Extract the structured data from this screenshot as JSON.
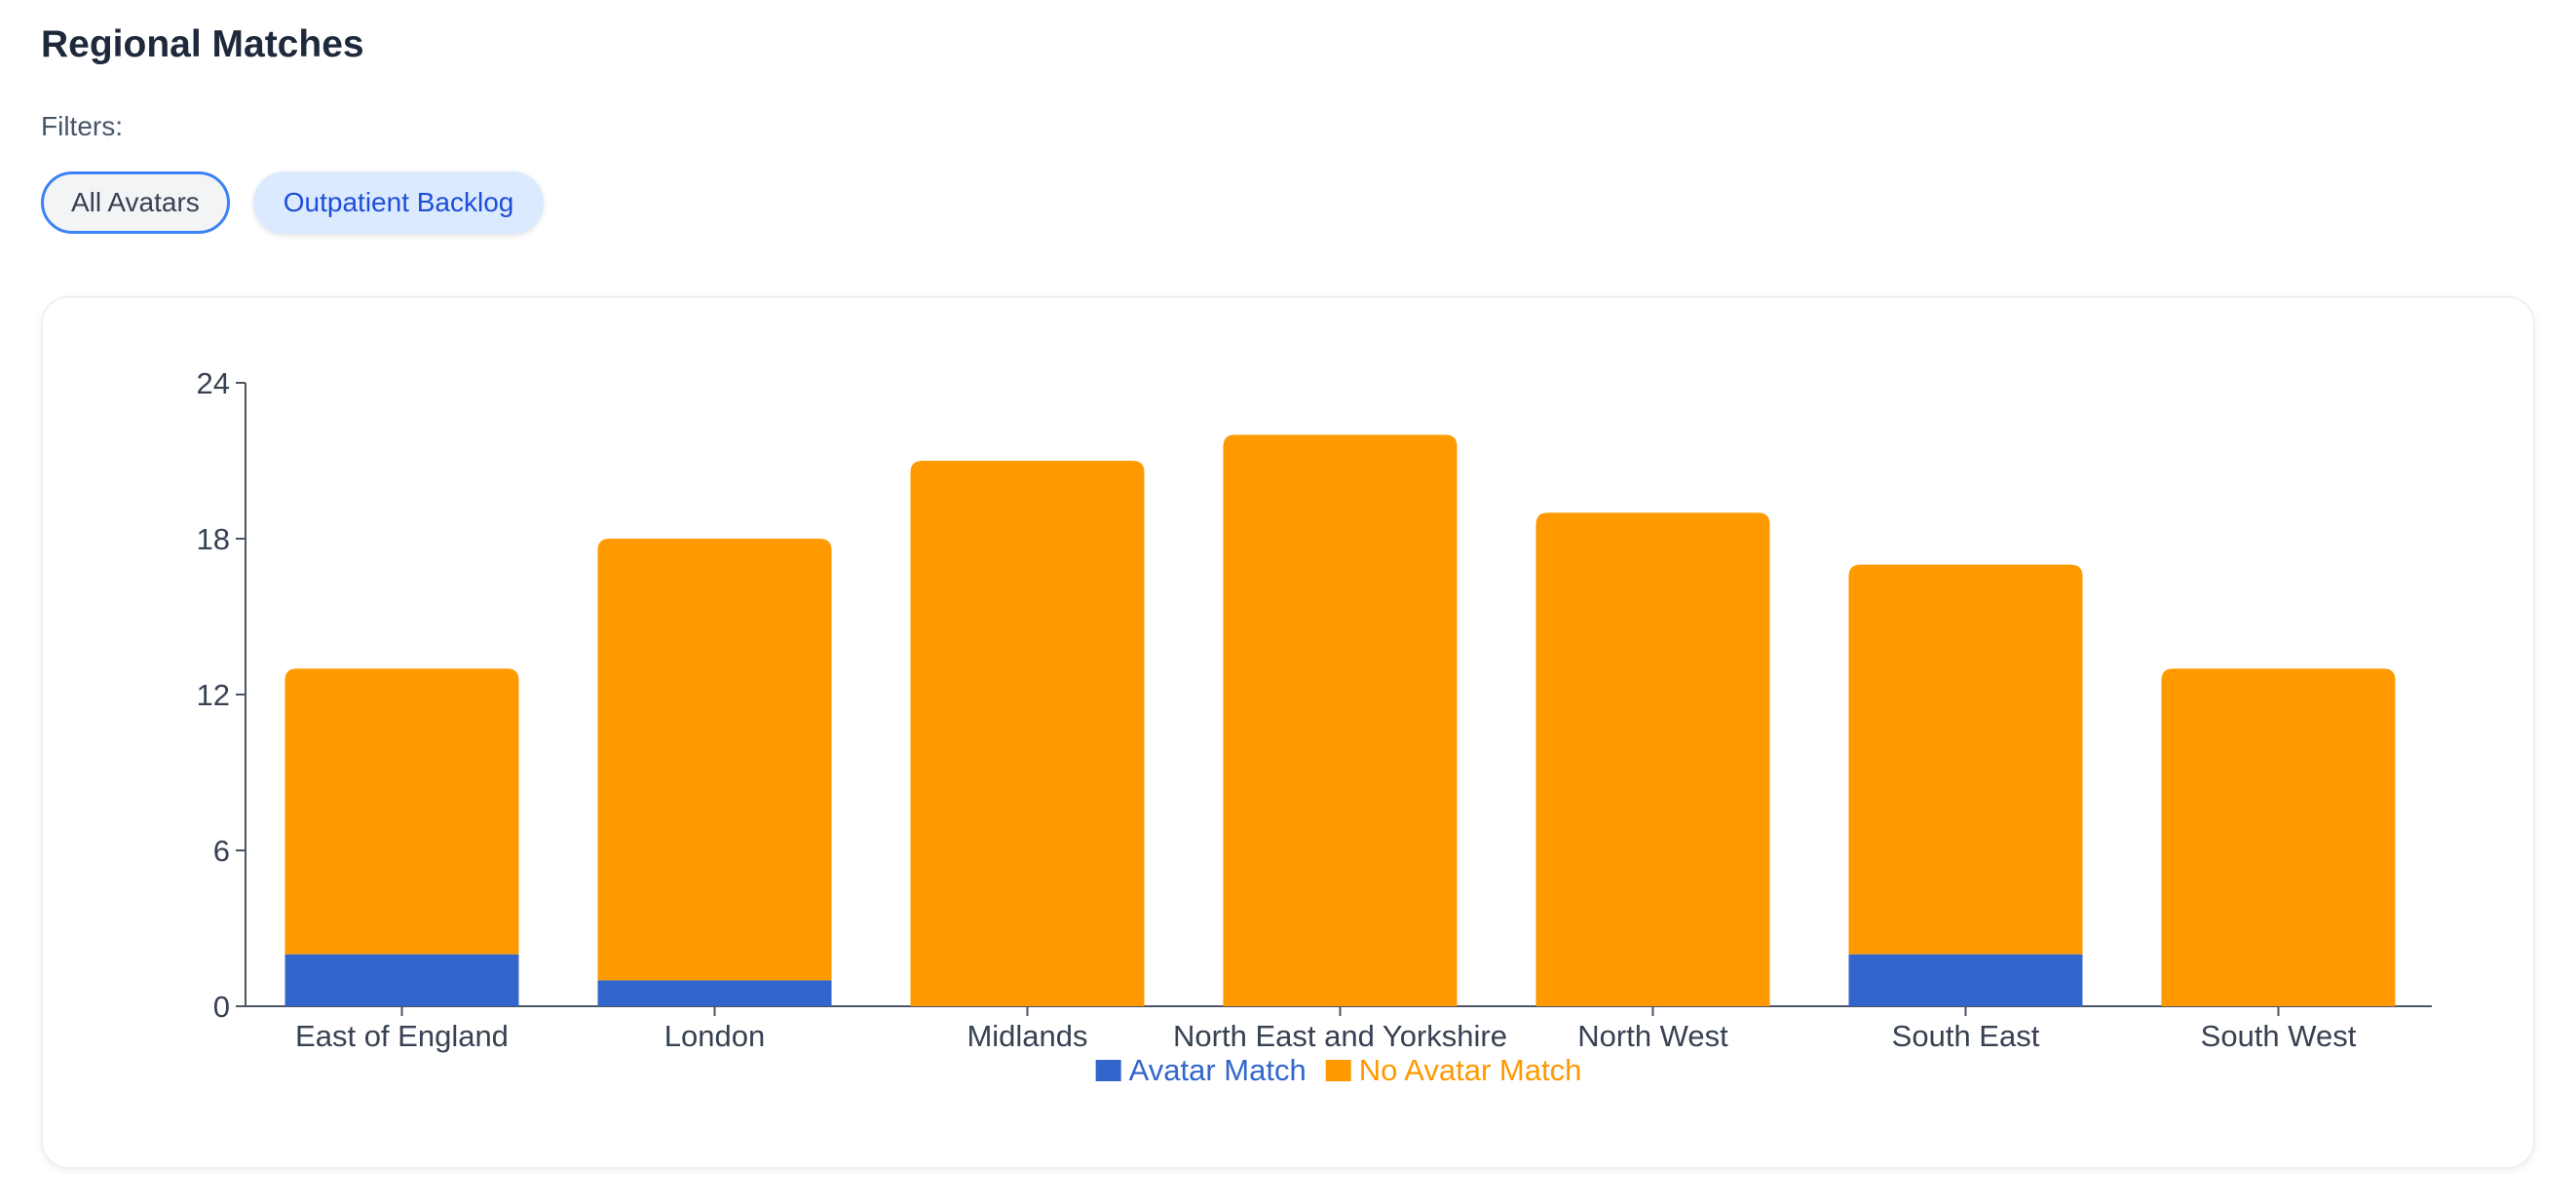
{
  "header": {
    "title": "Regional Matches"
  },
  "filters": {
    "label": "Filters:",
    "chips": [
      {
        "label": "All Avatars",
        "state": "outlined"
      },
      {
        "label": "Outpatient Backlog",
        "state": "highlighted"
      }
    ]
  },
  "colors": {
    "avatar_match": "#3366cc",
    "no_avatar_match": "#ff9900"
  },
  "chart_data": {
    "type": "bar",
    "stacked": true,
    "categories": [
      "East of England",
      "London",
      "Midlands",
      "North East and Yorkshire",
      "North West",
      "South East",
      "South West"
    ],
    "series": [
      {
        "name": "Avatar Match",
        "values": [
          2,
          1,
          0,
          0,
          0,
          2,
          0
        ]
      },
      {
        "name": "No Avatar Match",
        "values": [
          11,
          17,
          21,
          22,
          19,
          15,
          13
        ]
      }
    ],
    "ylim": [
      0,
      24
    ],
    "yticks": [
      0,
      6,
      12,
      18,
      24
    ],
    "legend_position": "bottom-center",
    "grid": false
  }
}
